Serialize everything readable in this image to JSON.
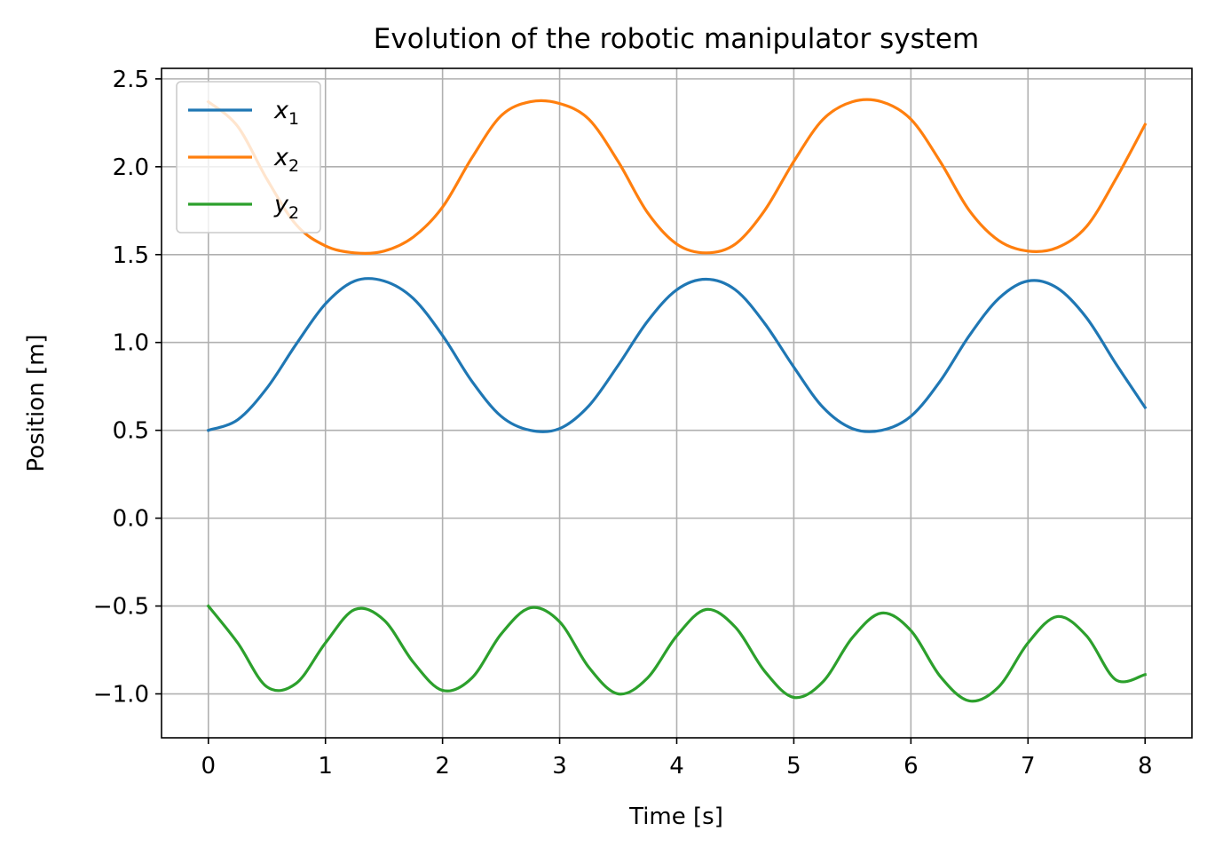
{
  "chart_data": {
    "type": "line",
    "title": "Evolution of the robotic manipulator system",
    "xlabel": "Time [s]",
    "ylabel": "Position [m]",
    "xlim": [
      -0.4,
      8.4
    ],
    "ylim": [
      -1.25,
      2.56
    ],
    "x_ticks": [
      0,
      1,
      2,
      3,
      4,
      5,
      6,
      7,
      8
    ],
    "x_tick_labels": [
      "0",
      "1",
      "2",
      "3",
      "4",
      "5",
      "6",
      "7",
      "8"
    ],
    "y_ticks": [
      -1.0,
      -0.5,
      0.0,
      0.5,
      1.0,
      1.5,
      2.0,
      2.5
    ],
    "y_tick_labels": [
      "−1.0",
      "−0.5",
      "0.0",
      "0.5",
      "1.0",
      "1.5",
      "2.0",
      "2.5"
    ],
    "grid": true,
    "legend_position": "top-left",
    "x": [
      0,
      0.25,
      0.5,
      0.75,
      1,
      1.25,
      1.5,
      1.75,
      2,
      2.25,
      2.5,
      2.75,
      3,
      3.25,
      3.5,
      3.75,
      4,
      4.25,
      4.5,
      4.75,
      5,
      5.25,
      5.5,
      5.75,
      6,
      6.25,
      6.5,
      6.75,
      7,
      7.25,
      7.5,
      7.75,
      8
    ],
    "series": [
      {
        "name": "x",
        "subscript": "1",
        "color": "#1f77b4",
        "values": [
          0.5,
          0.56,
          0.74,
          0.99,
          1.22,
          1.35,
          1.35,
          1.25,
          1.04,
          0.78,
          0.58,
          0.5,
          0.51,
          0.64,
          0.87,
          1.12,
          1.3,
          1.36,
          1.3,
          1.11,
          0.86,
          0.63,
          0.51,
          0.5,
          0.58,
          0.78,
          1.04,
          1.25,
          1.35,
          1.31,
          1.14,
          0.88,
          0.63
        ]
      },
      {
        "name": "x",
        "subscript": "2",
        "color": "#ff7f0e",
        "values": [
          2.37,
          2.23,
          1.93,
          1.67,
          1.55,
          1.51,
          1.52,
          1.6,
          1.77,
          2.05,
          2.29,
          2.37,
          2.36,
          2.27,
          2.03,
          1.74,
          1.56,
          1.51,
          1.56,
          1.75,
          2.03,
          2.27,
          2.37,
          2.37,
          2.27,
          2.03,
          1.75,
          1.58,
          1.52,
          1.54,
          1.66,
          1.93,
          2.24
        ]
      },
      {
        "name": "y",
        "subscript": "2",
        "color": "#2ca02c",
        "values": [
          -0.5,
          -0.71,
          -0.96,
          -0.94,
          -0.71,
          -0.52,
          -0.58,
          -0.82,
          -0.98,
          -0.91,
          -0.66,
          -0.51,
          -0.59,
          -0.85,
          -1.0,
          -0.91,
          -0.67,
          -0.52,
          -0.62,
          -0.87,
          -1.02,
          -0.93,
          -0.68,
          -0.54,
          -0.64,
          -0.9,
          -1.04,
          -0.96,
          -0.71,
          -0.56,
          -0.67,
          -0.92,
          -0.89
        ]
      }
    ]
  }
}
